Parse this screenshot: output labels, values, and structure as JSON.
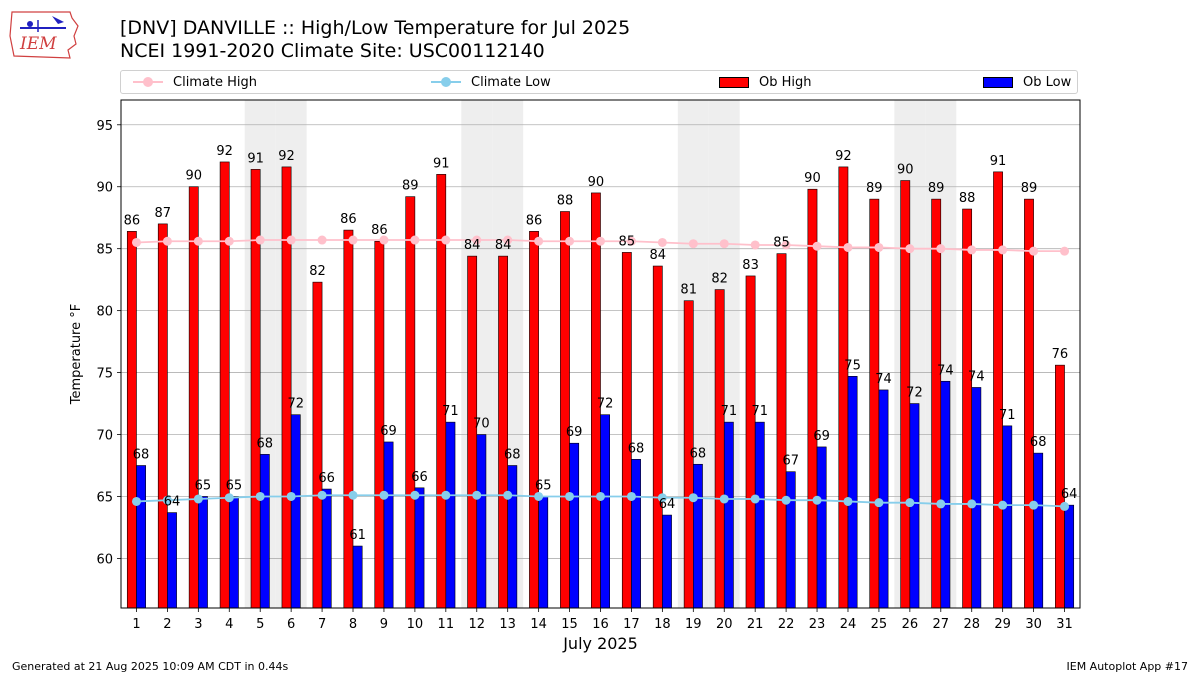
{
  "logo": {
    "text": "IEM"
  },
  "title_line1": "[DNV] DANVILLE :: High/Low Temperature for Jul 2025",
  "title_line2": "NCEI 1991-2020 Climate Site: USC00112140",
  "footer_left": "Generated at 21 Aug 2025 10:09 AM CDT in 0.44s",
  "footer_right": "IEM Autoplot App #17",
  "colors": {
    "ob_high": "#ff0000",
    "ob_low": "#0000ff",
    "climate_high": "#ffc0cb",
    "climate_low": "#87ceeb",
    "weekend_shade": "#eeeeee",
    "grid": "#b0b0b0"
  },
  "legend": [
    {
      "label": "Climate High",
      "kind": "line",
      "color": "#ffc0cb"
    },
    {
      "label": "Climate Low",
      "kind": "line",
      "color": "#87ceeb"
    },
    {
      "label": "Ob High",
      "kind": "bar",
      "color": "#ff0000"
    },
    {
      "label": "Ob Low",
      "kind": "bar",
      "color": "#0000ff"
    }
  ],
  "chart_data": {
    "type": "bar",
    "xlabel": "July 2025",
    "ylabel": "Temperature °F",
    "ylim": [
      56,
      97
    ],
    "yticks": [
      60,
      65,
      70,
      75,
      80,
      85,
      90,
      95
    ],
    "grid": true,
    "legend_position": "top",
    "categories": [
      "1",
      "2",
      "3",
      "4",
      "5",
      "6",
      "7",
      "8",
      "9",
      "10",
      "11",
      "12",
      "13",
      "14",
      "15",
      "16",
      "17",
      "18",
      "19",
      "20",
      "21",
      "22",
      "23",
      "24",
      "25",
      "26",
      "27",
      "28",
      "29",
      "30",
      "31"
    ],
    "shaded_days": [
      5,
      6,
      12,
      13,
      19,
      20,
      26,
      27
    ],
    "series": [
      {
        "name": "Ob High",
        "kind": "bar",
        "values": [
          86.4,
          87.0,
          90.0,
          92.0,
          91.4,
          91.6,
          82.3,
          86.5,
          85.6,
          89.2,
          91.0,
          84.4,
          84.4,
          86.4,
          88.0,
          89.5,
          84.7,
          83.6,
          80.8,
          81.7,
          82.8,
          84.6,
          89.8,
          91.6,
          89.0,
          90.5,
          89.0,
          88.2,
          91.2,
          89.0,
          75.6
        ],
        "labels": [
          "86",
          "87",
          "90",
          "92",
          "91",
          "92",
          "82",
          "86",
          "86",
          "89",
          "91",
          "84",
          "84",
          "86",
          "88",
          "90",
          "85",
          "84",
          "81",
          "82",
          "83",
          "85",
          "90",
          "92",
          "89",
          "90",
          "89",
          "88",
          "91",
          "89",
          "76"
        ]
      },
      {
        "name": "Ob Low",
        "kind": "bar",
        "values": [
          67.5,
          63.7,
          65.0,
          65.0,
          68.4,
          71.6,
          65.6,
          61.0,
          69.4,
          65.7,
          71.0,
          70.0,
          67.5,
          65.0,
          69.3,
          71.6,
          68.0,
          63.5,
          67.6,
          71.0,
          71.0,
          67.0,
          69.0,
          74.7,
          73.6,
          72.5,
          74.3,
          73.8,
          70.7,
          68.5,
          64.3
        ],
        "labels": [
          "68",
          "64",
          "65",
          "65",
          "68",
          "72",
          "66",
          "61",
          "69",
          "66",
          "71",
          "70",
          "68",
          "65",
          "69",
          "72",
          "68",
          "64",
          "68",
          "71",
          "71",
          "67",
          "69",
          "75",
          "74",
          "72",
          "74",
          "74",
          "71",
          "68",
          "64"
        ]
      },
      {
        "name": "Climate High",
        "kind": "line",
        "values": [
          85.5,
          85.6,
          85.6,
          85.6,
          85.7,
          85.7,
          85.7,
          85.7,
          85.7,
          85.7,
          85.7,
          85.7,
          85.7,
          85.6,
          85.6,
          85.6,
          85.6,
          85.5,
          85.4,
          85.4,
          85.3,
          85.3,
          85.2,
          85.1,
          85.1,
          85.0,
          85.0,
          84.9,
          84.9,
          84.8,
          84.8
        ]
      },
      {
        "name": "Climate Low",
        "kind": "line",
        "values": [
          64.6,
          64.7,
          64.8,
          64.9,
          65.0,
          65.0,
          65.1,
          65.1,
          65.1,
          65.1,
          65.1,
          65.1,
          65.1,
          65.0,
          65.0,
          65.0,
          65.0,
          64.9,
          64.9,
          64.8,
          64.8,
          64.7,
          64.7,
          64.6,
          64.5,
          64.5,
          64.4,
          64.4,
          64.3,
          64.3,
          64.2
        ]
      }
    ]
  }
}
